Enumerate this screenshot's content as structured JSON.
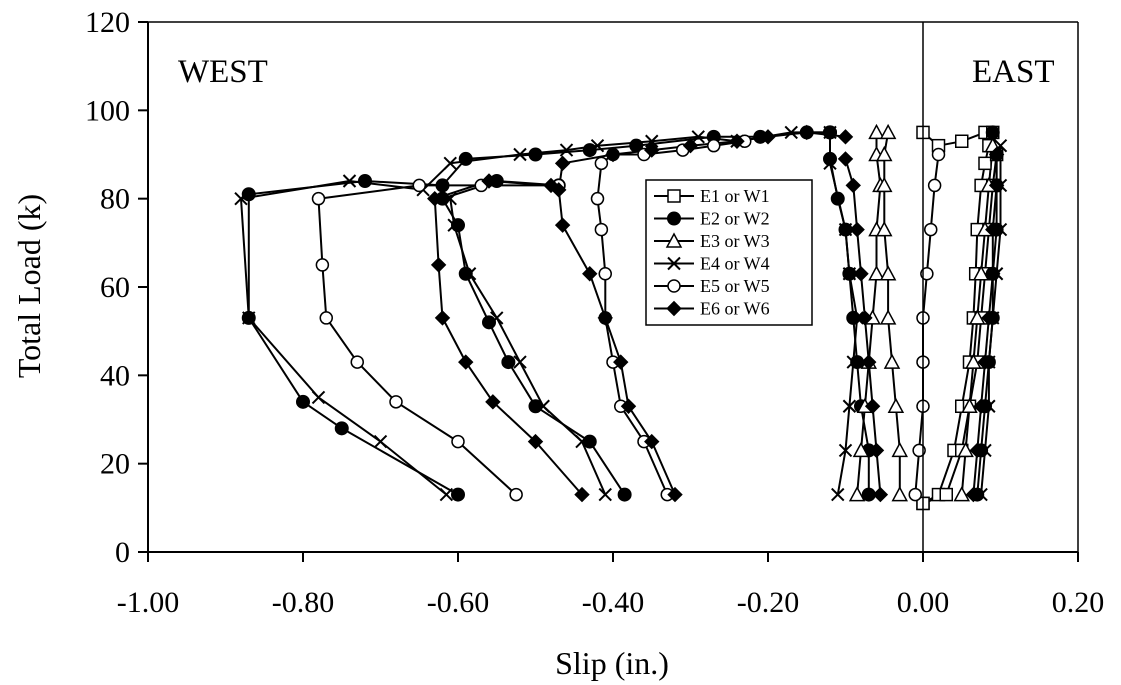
{
  "chart_data": {
    "type": "line",
    "title": "",
    "xlabel": "Slip (in.)",
    "ylabel": "Total Load (k)",
    "xlim": [
      -1.0,
      0.2
    ],
    "ylim": [
      0,
      120
    ],
    "x_ticks": [
      "-1.00",
      "-0.80",
      "-0.60",
      "-0.40",
      "-0.20",
      "0.00",
      "0.20"
    ],
    "y_ticks": [
      "0",
      "20",
      "40",
      "60",
      "80",
      "100",
      "120"
    ],
    "x_tick_values": [
      -1.0,
      -0.8,
      -0.6,
      -0.4,
      -0.2,
      0.0,
      0.2
    ],
    "y_tick_values": [
      0,
      20,
      40,
      60,
      80,
      100,
      120
    ],
    "grid": false,
    "legend_position": "center-right",
    "annotations": [
      {
        "text": "WEST",
        "x": -0.93,
        "y": 108
      },
      {
        "text": "EAST",
        "x": 0.06,
        "y": 108
      }
    ],
    "reference_lines": [
      {
        "orientation": "vertical",
        "x": 0.0
      }
    ],
    "series": [
      {
        "name": "E1 or W1",
        "marker": "square-open",
        "color": "#000000",
        "curves": [
          [
            [
              0.0,
              11
            ],
            [
              0.02,
              13
            ],
            [
              0.04,
              23
            ],
            [
              0.05,
              33
            ],
            [
              0.06,
              43
            ],
            [
              0.065,
              53
            ],
            [
              0.068,
              63
            ],
            [
              0.07,
              73
            ],
            [
              0.075,
              83
            ],
            [
              0.08,
              88
            ],
            [
              0.085,
              92
            ],
            [
              0.08,
              95
            ],
            [
              0.05,
              93
            ],
            [
              0.02,
              92
            ],
            [
              0.0,
              95
            ]
          ],
          [
            [
              0.0,
              11
            ],
            [
              0.03,
              13
            ],
            [
              0.05,
              23
            ],
            [
              0.06,
              33
            ],
            [
              0.07,
              43
            ],
            [
              0.075,
              53
            ],
            [
              0.08,
              63
            ],
            [
              0.085,
              73
            ],
            [
              0.09,
              83
            ],
            [
              0.095,
              90
            ],
            [
              0.09,
              95
            ]
          ]
        ]
      },
      {
        "name": "E2 or W2",
        "marker": "circle-filled",
        "color": "#000000",
        "curves": [
          [
            [
              -0.6,
              13
            ],
            [
              -0.75,
              28
            ],
            [
              -0.8,
              34
            ],
            [
              -0.87,
              53
            ],
            [
              -0.87,
              81
            ],
            [
              -0.72,
              84
            ],
            [
              -0.62,
              83
            ],
            [
              -0.59,
              89
            ],
            [
              -0.5,
              90
            ],
            [
              -0.43,
              91
            ],
            [
              -0.37,
              92
            ],
            [
              -0.27,
              94
            ],
            [
              -0.21,
              94
            ],
            [
              -0.15,
              95
            ],
            [
              -0.12,
              95
            ]
          ],
          [
            [
              -0.385,
              13
            ],
            [
              -0.43,
              25
            ],
            [
              -0.5,
              33
            ],
            [
              -0.535,
              43
            ],
            [
              -0.56,
              52
            ],
            [
              -0.59,
              63
            ],
            [
              -0.6,
              74
            ],
            [
              -0.62,
              80
            ],
            [
              -0.55,
              84
            ],
            [
              -0.47,
              83
            ]
          ],
          [
            [
              -0.07,
              13
            ],
            [
              -0.07,
              23
            ],
            [
              -0.08,
              33
            ],
            [
              -0.085,
              43
            ],
            [
              -0.09,
              53
            ],
            [
              -0.095,
              63
            ],
            [
              -0.1,
              73
            ],
            [
              -0.11,
              80
            ],
            [
              -0.12,
              89
            ],
            [
              -0.12,
              95
            ]
          ],
          [
            [
              0.07,
              13
            ],
            [
              0.075,
              23
            ],
            [
              0.08,
              33
            ],
            [
              0.085,
              43
            ],
            [
              0.09,
              53
            ],
            [
              0.09,
              63
            ],
            [
              0.095,
              73
            ],
            [
              0.095,
              83
            ],
            [
              0.095,
              90
            ],
            [
              0.09,
              95
            ]
          ]
        ]
      },
      {
        "name": "E3 or W3",
        "marker": "triangle-open",
        "color": "#000000",
        "curves": [
          [
            [
              -0.085,
              13
            ],
            [
              -0.08,
              23
            ],
            [
              -0.075,
              33
            ],
            [
              -0.07,
              43
            ],
            [
              -0.065,
              53
            ],
            [
              -0.06,
              63
            ],
            [
              -0.06,
              73
            ],
            [
              -0.055,
              83
            ],
            [
              -0.06,
              90
            ],
            [
              -0.06,
              95
            ]
          ],
          [
            [
              -0.03,
              13
            ],
            [
              -0.03,
              23
            ],
            [
              -0.035,
              33
            ],
            [
              -0.04,
              43
            ],
            [
              -0.045,
              53
            ],
            [
              -0.045,
              63
            ],
            [
              -0.05,
              73
            ],
            [
              -0.05,
              83
            ],
            [
              -0.05,
              90
            ],
            [
              -0.045,
              95
            ]
          ],
          [
            [
              0.05,
              13
            ],
            [
              0.055,
              23
            ],
            [
              0.06,
              33
            ],
            [
              0.065,
              43
            ],
            [
              0.07,
              53
            ],
            [
              0.075,
              63
            ],
            [
              0.08,
              73
            ],
            [
              0.085,
              83
            ],
            [
              0.09,
              92
            ]
          ]
        ]
      },
      {
        "name": "E4 or W4",
        "marker": "x",
        "color": "#000000",
        "curves": [
          [
            [
              -0.615,
              13
            ],
            [
              -0.7,
              25
            ],
            [
              -0.78,
              35
            ],
            [
              -0.87,
              53
            ],
            [
              -0.88,
              80
            ],
            [
              -0.74,
              84
            ],
            [
              -0.645,
              82
            ],
            [
              -0.61,
              88
            ],
            [
              -0.52,
              90
            ],
            [
              -0.46,
              91
            ],
            [
              -0.42,
              92
            ],
            [
              -0.35,
              93
            ],
            [
              -0.29,
              94
            ],
            [
              -0.24,
              93
            ],
            [
              -0.17,
              95
            ],
            [
              -0.12,
              95
            ]
          ],
          [
            [
              -0.41,
              13
            ],
            [
              -0.44,
              25
            ],
            [
              -0.49,
              33
            ],
            [
              -0.52,
              43
            ],
            [
              -0.55,
              53
            ],
            [
              -0.585,
              63
            ],
            [
              -0.605,
              74
            ],
            [
              -0.61,
              80
            ]
          ],
          [
            [
              -0.11,
              13
            ],
            [
              -0.1,
              23
            ],
            [
              -0.095,
              33
            ],
            [
              -0.09,
              43
            ],
            [
              -0.085,
              53
            ],
            [
              -0.095,
              63
            ],
            [
              -0.1,
              73
            ],
            [
              -0.12,
              88
            ]
          ],
          [
            [
              0.075,
              13
            ],
            [
              0.08,
              23
            ],
            [
              0.085,
              33
            ],
            [
              0.085,
              43
            ],
            [
              0.09,
              53
            ],
            [
              0.095,
              63
            ],
            [
              0.1,
              73
            ],
            [
              0.1,
              83
            ],
            [
              0.1,
              92
            ]
          ]
        ]
      },
      {
        "name": "E5 or W5",
        "marker": "circle-open",
        "color": "#000000",
        "curves": [
          [
            [
              -0.525,
              13
            ],
            [
              -0.6,
              25
            ],
            [
              -0.68,
              34
            ],
            [
              -0.73,
              43
            ],
            [
              -0.77,
              53
            ],
            [
              -0.775,
              65
            ],
            [
              -0.78,
              80
            ],
            [
              -0.65,
              83
            ],
            [
              -0.57,
              83
            ],
            [
              -0.47,
              83
            ]
          ],
          [
            [
              -0.33,
              13
            ],
            [
              -0.36,
              25
            ],
            [
              -0.39,
              33
            ],
            [
              -0.4,
              43
            ],
            [
              -0.41,
              53
            ],
            [
              -0.41,
              63
            ],
            [
              -0.415,
              73
            ],
            [
              -0.42,
              80
            ],
            [
              -0.415,
              88
            ],
            [
              -0.4,
              90
            ],
            [
              -0.36,
              90
            ],
            [
              -0.31,
              91
            ],
            [
              -0.27,
              92
            ],
            [
              -0.23,
              93
            ]
          ],
          [
            [
              -0.01,
              13
            ],
            [
              -0.005,
              23
            ],
            [
              0.0,
              33
            ],
            [
              0.0,
              43
            ],
            [
              0.0,
              53
            ],
            [
              0.005,
              63
            ],
            [
              0.01,
              73
            ],
            [
              0.015,
              83
            ],
            [
              0.02,
              90
            ]
          ]
        ]
      },
      {
        "name": "E6 or W6",
        "marker": "diamond-filled",
        "color": "#000000",
        "curves": [
          [
            [
              -0.44,
              13
            ],
            [
              -0.5,
              25
            ],
            [
              -0.555,
              34
            ],
            [
              -0.59,
              43
            ],
            [
              -0.62,
              53
            ],
            [
              -0.625,
              65
            ],
            [
              -0.63,
              80
            ],
            [
              -0.56,
              84
            ],
            [
              -0.48,
              83
            ]
          ],
          [
            [
              -0.32,
              13
            ],
            [
              -0.35,
              25
            ],
            [
              -0.38,
              33
            ],
            [
              -0.39,
              43
            ],
            [
              -0.41,
              53
            ],
            [
              -0.43,
              63
            ],
            [
              -0.465,
              74
            ],
            [
              -0.47,
              82
            ],
            [
              -0.465,
              88
            ],
            [
              -0.4,
              90
            ],
            [
              -0.35,
              91
            ],
            [
              -0.3,
              92
            ],
            [
              -0.24,
              93
            ],
            [
              -0.2,
              94
            ],
            [
              -0.15,
              95
            ],
            [
              -0.1,
              94
            ]
          ],
          [
            [
              -0.055,
              13
            ],
            [
              -0.06,
              23
            ],
            [
              -0.065,
              33
            ],
            [
              -0.07,
              43
            ],
            [
              -0.075,
              53
            ],
            [
              -0.08,
              63
            ],
            [
              -0.085,
              73
            ],
            [
              -0.09,
              83
            ],
            [
              -0.1,
              89
            ]
          ],
          [
            [
              0.065,
              13
            ],
            [
              0.07,
              23
            ],
            [
              0.075,
              33
            ],
            [
              0.08,
              43
            ],
            [
              0.085,
              53
            ],
            [
              0.09,
              63
            ],
            [
              0.09,
              73
            ],
            [
              0.095,
              83
            ],
            [
              0.095,
              90
            ]
          ]
        ]
      }
    ]
  }
}
